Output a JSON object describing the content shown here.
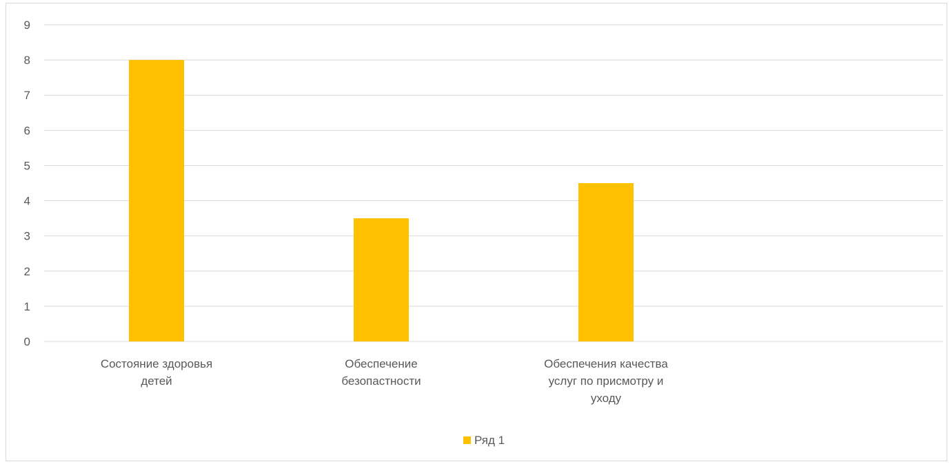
{
  "chart_data": {
    "type": "bar",
    "categories": [
      [
        "Состояние здоровья",
        "детей"
      ],
      [
        "Обеспечение",
        "безопастности"
      ],
      [
        "Обеспечения качества",
        "услуг по присмотру и",
        "уходу"
      ],
      [
        ""
      ]
    ],
    "series": [
      {
        "name": "Ряд 1",
        "values": [
          8,
          3.5,
          4.5,
          null
        ],
        "color": "#FFC000"
      }
    ],
    "yticks": [
      "0",
      "1",
      "2",
      "3",
      "4",
      "5",
      "6",
      "7",
      "8",
      "9"
    ],
    "ylim": [
      0,
      9
    ],
    "grid": true,
    "legend_position": "bottom",
    "title": "",
    "xlabel": "",
    "ylabel": ""
  }
}
